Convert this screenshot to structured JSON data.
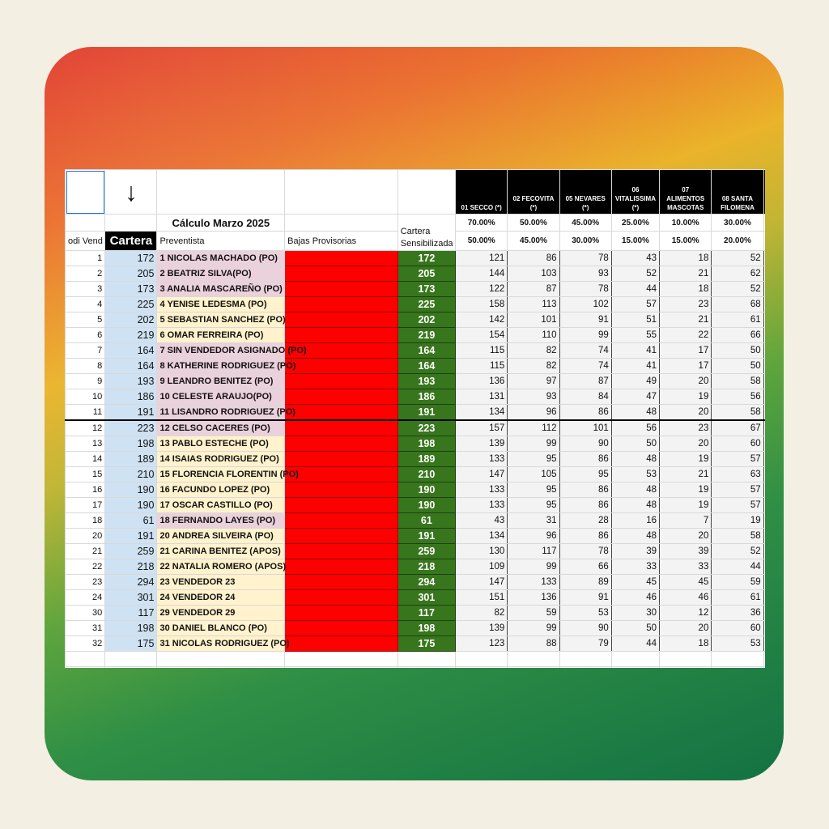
{
  "sheet": {
    "arrow": "↓",
    "title": "Cálculo Marzo 2025",
    "col_headers": {
      "cod_vend": "odi Vend",
      "cartera": "Cartera",
      "preventista": "Preventista",
      "bajas": "Bajas Provisorias",
      "sensibilizada": "Cartera Sensibilizada"
    },
    "brands": [
      {
        "label": "01 SECCO (*)",
        "pct_top": "70.00%",
        "pct_bottom": "50.00%"
      },
      {
        "label": "02 FECOVITA (*)",
        "pct_top": "50.00%",
        "pct_bottom": "45.00%"
      },
      {
        "label": "05 NEVARES (*)",
        "pct_top": "45.00%",
        "pct_bottom": "30.00%"
      },
      {
        "label": "06 VITALISSIMA (*)",
        "pct_top": "25.00%",
        "pct_bottom": "15.00%"
      },
      {
        "label": "07 ALIMENTOS MASCOTAS",
        "pct_top": "10.00%",
        "pct_bottom": "15.00%"
      },
      {
        "label": "08 SANTA FILOMENA",
        "pct_top": "30.00%",
        "pct_bottom": "20.00%"
      }
    ],
    "rows": [
      {
        "cod": "1",
        "cartera": "172",
        "name": "1 NICOLAS MACHADO (PO)",
        "color": "pink",
        "sens": "172",
        "vals": [
          "121",
          "86",
          "78",
          "43",
          "18",
          "52"
        ]
      },
      {
        "cod": "2",
        "cartera": "205",
        "name": "2 BEATRIZ SILVA(PO)",
        "color": "pink",
        "sens": "205",
        "vals": [
          "144",
          "103",
          "93",
          "52",
          "21",
          "62"
        ]
      },
      {
        "cod": "3",
        "cartera": "173",
        "name": "3 ANALIA MASCAREÑO (PO)",
        "color": "pink",
        "sens": "173",
        "vals": [
          "122",
          "87",
          "78",
          "44",
          "18",
          "52"
        ]
      },
      {
        "cod": "4",
        "cartera": "225",
        "name": "4 YENISE LEDESMA (PO)",
        "color": "yellow",
        "sens": "225",
        "vals": [
          "158",
          "113",
          "102",
          "57",
          "23",
          "68"
        ]
      },
      {
        "cod": "5",
        "cartera": "202",
        "name": "5 SEBASTIAN SANCHEZ (PO)",
        "color": "yellow",
        "sens": "202",
        "vals": [
          "142",
          "101",
          "91",
          "51",
          "21",
          "61"
        ]
      },
      {
        "cod": "6",
        "cartera": "219",
        "name": "6 OMAR FERREIRA (PO)",
        "color": "yellow",
        "sens": "219",
        "vals": [
          "154",
          "110",
          "99",
          "55",
          "22",
          "66"
        ]
      },
      {
        "cod": "7",
        "cartera": "164",
        "name": "7 SIN VENDEDOR ASIGNADO (PO)",
        "color": "pink",
        "sens": "164",
        "vals": [
          "115",
          "82",
          "74",
          "41",
          "17",
          "50"
        ]
      },
      {
        "cod": "8",
        "cartera": "164",
        "name": "8 KATHERINE RODRIGUEZ (PO)",
        "color": "pink",
        "sens": "164",
        "vals": [
          "115",
          "82",
          "74",
          "41",
          "17",
          "50"
        ]
      },
      {
        "cod": "9",
        "cartera": "193",
        "name": "9 LEANDRO BENITEZ (PO)",
        "color": "pink",
        "sens": "193",
        "vals": [
          "136",
          "97",
          "87",
          "49",
          "20",
          "58"
        ]
      },
      {
        "cod": "10",
        "cartera": "186",
        "name": "10 CELESTE ARAUJO(PO)",
        "color": "pink",
        "sens": "186",
        "vals": [
          "131",
          "93",
          "84",
          "47",
          "19",
          "56"
        ]
      },
      {
        "cod": "11",
        "cartera": "191",
        "name": "11 LISANDRO RODRIGUEZ (PO)",
        "color": "pink",
        "sens": "191",
        "vals": [
          "134",
          "96",
          "86",
          "48",
          "20",
          "58"
        ]
      },
      {
        "cod": "12",
        "cartera": "223",
        "name": "12 CELSO CACERES (PO)",
        "color": "pink",
        "sens": "223",
        "vals": [
          "157",
          "112",
          "101",
          "56",
          "23",
          "67"
        ]
      },
      {
        "cod": "13",
        "cartera": "198",
        "name": "13 PABLO ESTECHE (PO)",
        "color": "yellow",
        "sens": "198",
        "vals": [
          "139",
          "99",
          "90",
          "50",
          "20",
          "60"
        ]
      },
      {
        "cod": "14",
        "cartera": "189",
        "name": "14 ISAIAS RODRIGUEZ (PO)",
        "color": "yellow",
        "sens": "189",
        "vals": [
          "133",
          "95",
          "86",
          "48",
          "19",
          "57"
        ]
      },
      {
        "cod": "15",
        "cartera": "210",
        "name": "15 FLORENCIA FLORENTIN (PO)",
        "color": "yellow",
        "sens": "210",
        "vals": [
          "147",
          "105",
          "95",
          "53",
          "21",
          "63"
        ]
      },
      {
        "cod": "16",
        "cartera": "190",
        "name": "16 FACUNDO LOPEZ (PO)",
        "color": "yellow",
        "sens": "190",
        "vals": [
          "133",
          "95",
          "86",
          "48",
          "19",
          "57"
        ]
      },
      {
        "cod": "17",
        "cartera": "190",
        "name": "17 OSCAR CASTILLO (PO)",
        "color": "yellow",
        "sens": "190",
        "vals": [
          "133",
          "95",
          "86",
          "48",
          "19",
          "57"
        ]
      },
      {
        "cod": "18",
        "cartera": "61",
        "name": "18 FERNANDO LAYES (PO)",
        "color": "pink",
        "sens": "61",
        "vals": [
          "43",
          "31",
          "28",
          "16",
          "7",
          "19"
        ]
      },
      {
        "cod": "20",
        "cartera": "191",
        "name": "20 ANDREA SILVEIRA (PO)",
        "color": "yellow",
        "sens": "191",
        "vals": [
          "134",
          "96",
          "86",
          "48",
          "20",
          "58"
        ]
      },
      {
        "cod": "21",
        "cartera": "259",
        "name": "21 CARINA BENITEZ (APOS)",
        "color": "yellow",
        "sens": "259",
        "vals": [
          "130",
          "117",
          "78",
          "39",
          "39",
          "52"
        ]
      },
      {
        "cod": "22",
        "cartera": "218",
        "name": "22 NATALIA ROMERO (APOS)",
        "color": "yellow",
        "sens": "218",
        "vals": [
          "109",
          "99",
          "66",
          "33",
          "33",
          "44"
        ]
      },
      {
        "cod": "23",
        "cartera": "294",
        "name": "23 VENDEDOR 23",
        "color": "yellow",
        "sens": "294",
        "vals": [
          "147",
          "133",
          "89",
          "45",
          "45",
          "59"
        ]
      },
      {
        "cod": "24",
        "cartera": "301",
        "name": "24 VENDEDOR 24",
        "color": "yellow",
        "sens": "301",
        "vals": [
          "151",
          "136",
          "91",
          "46",
          "46",
          "61"
        ]
      },
      {
        "cod": "30",
        "cartera": "117",
        "name": "29 VENDEDOR 29",
        "color": "yellow",
        "sens": "117",
        "vals": [
          "82",
          "59",
          "53",
          "30",
          "12",
          "36"
        ]
      },
      {
        "cod": "31",
        "cartera": "198",
        "name": "30 DANIEL BLANCO (PO)",
        "color": "yellow",
        "sens": "198",
        "vals": [
          "139",
          "99",
          "90",
          "50",
          "20",
          "60"
        ]
      },
      {
        "cod": "32",
        "cartera": "175",
        "name": "31 NICOLAS RODRIGUEZ (PO)",
        "color": "yellow",
        "sens": "175",
        "vals": [
          "123",
          "88",
          "79",
          "44",
          "18",
          "53"
        ]
      }
    ]
  },
  "colors": {
    "cartera_bg": "#cfe2f3",
    "pink": "#ead1dc",
    "yellow": "#fff2cc",
    "bajas_red": "#ff0000",
    "sens_green": "#38761d",
    "header_black": "#000000"
  }
}
